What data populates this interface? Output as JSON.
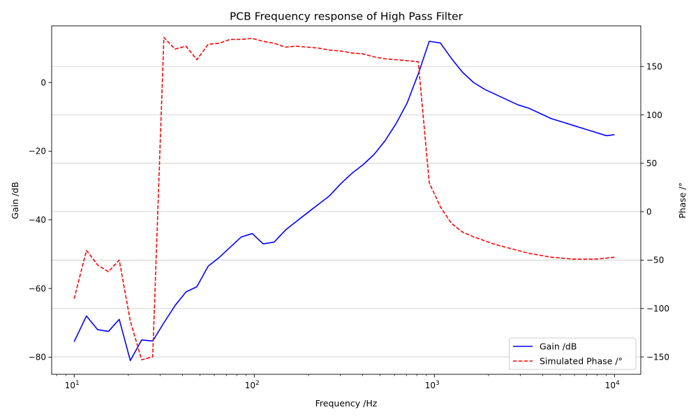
{
  "chart_data": {
    "type": "line",
    "title": "PCB Frequency response of High Pass Filter",
    "xlabel": "Frequency /Hz",
    "ylabel_left": "Gain /dB",
    "ylabel_right": "Phase /°",
    "xscale": "log",
    "xlim": [
      7.5,
      14000
    ],
    "ylim_left": [
      -85,
      16.5
    ],
    "ylim_right": [
      -168,
      192
    ],
    "x_ticks": [
      {
        "value": 10,
        "base": "10",
        "exp": "1"
      },
      {
        "value": 100,
        "base": "10",
        "exp": "2"
      },
      {
        "value": 1000,
        "base": "10",
        "exp": "3"
      },
      {
        "value": 10000,
        "base": "10",
        "exp": "4"
      }
    ],
    "y_left_ticks": [
      {
        "value": 0,
        "label": "0"
      },
      {
        "value": -20,
        "label": "−20"
      },
      {
        "value": -40,
        "label": "−40"
      },
      {
        "value": -60,
        "label": "−60"
      },
      {
        "value": -80,
        "label": "−80"
      }
    ],
    "y_right_ticks": [
      {
        "value": 150,
        "label": "150"
      },
      {
        "value": 100,
        "label": "100"
      },
      {
        "value": 50,
        "label": "50"
      },
      {
        "value": 0,
        "label": "0"
      },
      {
        "value": -50,
        "label": "−50"
      },
      {
        "value": -100,
        "label": "−100"
      },
      {
        "value": -150,
        "label": "−150"
      }
    ],
    "grid": "horizontal-right-axis",
    "legend_position": "bottom-right",
    "series": [
      {
        "name": "Gain /dB",
        "axis": "left",
        "color": "#0000ff",
        "style": "solid",
        "x": [
          10,
          11.7,
          13.5,
          15.5,
          17.8,
          20.5,
          23.7,
          27.3,
          31.5,
          36.3,
          41.8,
          48,
          55.5,
          63.8,
          73.5,
          84.7,
          97.5,
          112,
          129,
          149,
          171,
          197,
          227,
          262,
          302,
          348,
          401,
          462,
          532,
          613,
          706,
          814,
          937,
          1080,
          1244,
          1433,
          1651,
          1902,
          2192,
          2525,
          2909,
          3351,
          3861,
          4448,
          5124,
          5903,
          6800,
          7834,
          9025,
          10000
        ],
        "y": [
          -75.5,
          -68,
          -72,
          -72.5,
          -69,
          -81,
          -75,
          -75.3,
          -70,
          -65,
          -61,
          -59.5,
          -53.5,
          -51,
          -48,
          -45,
          -44,
          -47,
          -46.5,
          -43,
          -40.5,
          -38,
          -35.5,
          -33,
          -29.5,
          -26.5,
          -24,
          -21,
          -17,
          -12,
          -6,
          2.5,
          12,
          11.5,
          7,
          3,
          0,
          -2,
          -3.5,
          -5,
          -6.5,
          -7.5,
          -9,
          -10.5,
          -11.5,
          -12.5,
          -13.5,
          -14.5,
          -15.5,
          -15.2
        ]
      },
      {
        "name": "Simulated Phase /°",
        "axis": "right",
        "color": "#ff0000",
        "style": "dashed",
        "x": [
          10,
          11.7,
          13.5,
          15.5,
          17.8,
          20.5,
          23.7,
          27.3,
          31.5,
          36.3,
          41.8,
          48,
          55.5,
          63.8,
          73.5,
          84.7,
          97.5,
          112,
          129,
          149,
          171,
          197,
          227,
          262,
          302,
          348,
          401,
          462,
          532,
          613,
          706,
          814,
          937,
          1080,
          1244,
          1433,
          1651,
          1902,
          2192,
          2525,
          2909,
          3351,
          3861,
          4448,
          5124,
          5903,
          6800,
          7834,
          9025,
          10000
        ],
        "y": [
          -90,
          -40,
          -55,
          -62,
          -50,
          -113,
          -153,
          -150,
          180,
          168,
          171,
          157,
          173,
          174,
          178,
          178,
          179,
          176,
          174,
          170,
          171,
          170,
          169,
          167,
          166,
          164,
          163,
          160,
          158,
          157,
          156,
          155,
          30,
          5,
          -12,
          -21,
          -26,
          -30,
          -34,
          -37,
          -40,
          -43,
          -45,
          -47,
          -48,
          -49,
          -49,
          -49,
          -48,
          -47
        ]
      }
    ]
  },
  "legend": {
    "items": [
      {
        "label": "Gain /dB",
        "color": "#0000ff",
        "style": "solid"
      },
      {
        "label": "Simulated Phase /°",
        "color": "#ff0000",
        "style": "dashed"
      }
    ]
  }
}
